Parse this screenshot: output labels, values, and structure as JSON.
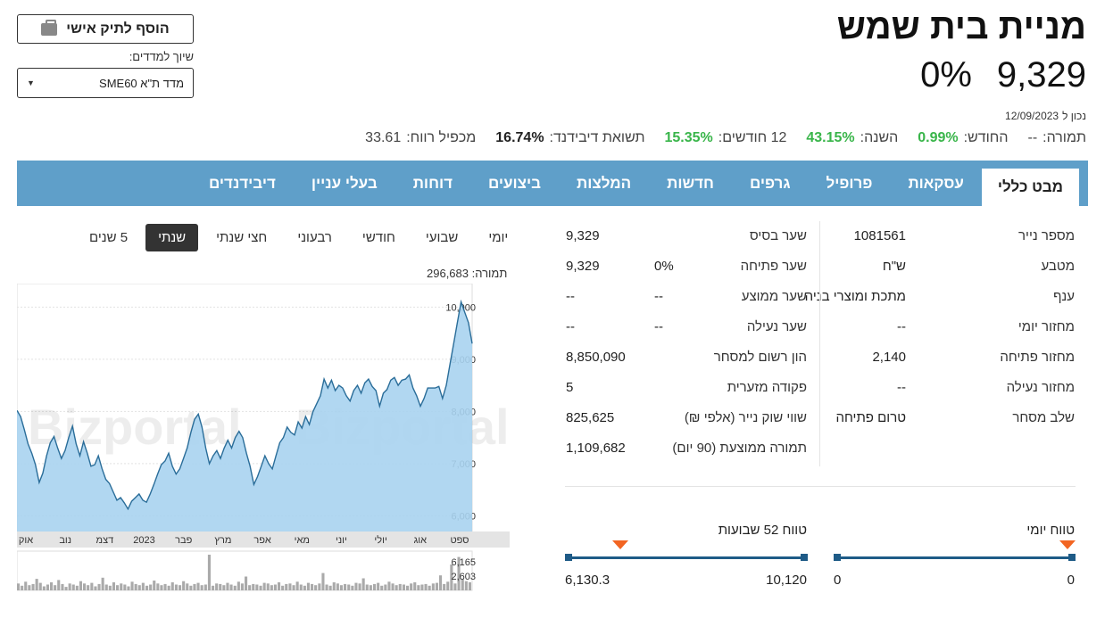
{
  "header": {
    "title": "מניית בית שמש",
    "price": "9,329",
    "change_pct": "0%",
    "as_of_label": "נכון ל",
    "as_of_date": "12/09/2023"
  },
  "stats": [
    {
      "label": "תמורה:",
      "value": "--",
      "style": "plain"
    },
    {
      "label": "החודש:",
      "value": "0.99%",
      "style": "green"
    },
    {
      "label": "השנה:",
      "value": "43.15%",
      "style": "green"
    },
    {
      "label": "12 חודשים:",
      "value": "15.35%",
      "style": "green"
    },
    {
      "label": "תשואת דיבידנד:",
      "value": "16.74%",
      "style": "bold"
    },
    {
      "label": "מכפיל רווח:",
      "value": "33.61",
      "style": "plain"
    }
  ],
  "actions": {
    "portfolio_button": "הוסף לתיק אישי",
    "index_label": "שיוך למדדים:",
    "index_selected": "מדד ת\"א SME60"
  },
  "tabs": [
    {
      "label": "מבט כללי",
      "active": true
    },
    {
      "label": "עסקאות"
    },
    {
      "label": "פרופיל"
    },
    {
      "label": "גרפים"
    },
    {
      "label": "חדשות"
    },
    {
      "label": "המלצות"
    },
    {
      "label": "ביצועים"
    },
    {
      "label": "דוחות"
    },
    {
      "label": "בעלי עניין"
    },
    {
      "label": "דיבידנדים"
    }
  ],
  "details_right": [
    {
      "label": "מספר נייר",
      "value": "1081561"
    },
    {
      "label": "מטבע",
      "value": "ש\"ח"
    },
    {
      "label": "ענף",
      "value": "מתכת ומוצרי בניה"
    },
    {
      "label": "מחזור יומי",
      "value": "--"
    },
    {
      "label": "מחזור פתיחה",
      "value": "2,140"
    },
    {
      "label": "מחזור נעילה",
      "value": "--"
    },
    {
      "label": "שלב מסחר",
      "value": "טרום פתיחה"
    }
  ],
  "details_left": [
    {
      "label": "שער בסיס",
      "mid": "",
      "value": "9,329"
    },
    {
      "label": "שער פתיחה",
      "mid": "0%",
      "value": "9,329"
    },
    {
      "label": "שער ממוצע",
      "mid": "--",
      "value": "--"
    },
    {
      "label": "שער נעילה",
      "mid": "--",
      "value": "--"
    },
    {
      "label": "הון רשום למסחר",
      "mid": "",
      "value": "8,850,090"
    },
    {
      "label": "פקודה מזערית",
      "mid": "",
      "value": "5"
    },
    {
      "label": "שווי שוק נייר (אלפי ₪)",
      "mid": "",
      "value": "825,625"
    },
    {
      "label": "תמורה ממוצעת (90 יום)",
      "mid": "",
      "value": "1,109,682"
    }
  ],
  "ranges": {
    "daily": {
      "title": "טווח יומי",
      "low": "0",
      "high": "0",
      "marker": 0.0
    },
    "week52": {
      "title": "טווח 52 שבועות",
      "low": "6,130.3",
      "high": "10,120",
      "marker": 0.79
    }
  },
  "chart_controls": {
    "periods": [
      "יומי",
      "שבועי",
      "חודשי",
      "רבעוני",
      "חצי שנתי",
      "שנתי",
      "5 שנים"
    ],
    "active_period": "שנתי",
    "turnover_label": "תמורה:",
    "turnover_value": "296,683"
  },
  "chart_data": {
    "type": "area",
    "watermark": "Bizportal",
    "y_ticks": [
      "10,000",
      "9,000",
      "8,000",
      "7,000",
      "6,000"
    ],
    "ylim": [
      5700,
      10450
    ],
    "x_labels": [
      "ספט",
      "אוג",
      "יולי",
      "יוני",
      "מאי",
      "אפר",
      "מרץ",
      "פבר",
      "2023",
      "דצמ",
      "נוב",
      "אוק"
    ],
    "volume_ticks": [
      "6,165",
      "2,603"
    ],
    "series": [
      {
        "values": [
          8020,
          7900,
          7650,
          7380,
          7200,
          6980,
          6640,
          6820,
          7150,
          7400,
          7520,
          7300,
          7100,
          7250,
          7500,
          7720,
          7380,
          7150,
          7420,
          7200,
          6950,
          6980,
          7150,
          6900,
          6700,
          6620,
          6460,
          6300,
          6350,
          6250,
          6130,
          6280,
          6350,
          6420,
          6300,
          6260,
          6420,
          6600,
          6800,
          6980,
          7050,
          7200,
          6950,
          6800,
          6900,
          7100,
          7300,
          7600,
          7850,
          7950,
          7700,
          7300,
          7000,
          7150,
          7250,
          7100,
          7300,
          7450,
          7300,
          7500,
          7620,
          7500,
          7200,
          6950,
          6600,
          6750,
          6950,
          7150,
          7000,
          6900,
          7150,
          7400,
          7500,
          7700,
          7600,
          7550,
          7800,
          7680,
          7900,
          7750,
          8000,
          8150,
          8300,
          8620,
          8450,
          8600,
          8400,
          8500,
          8450,
          8300,
          8200,
          8400,
          8500,
          8350,
          8550,
          8620,
          8480,
          8400,
          8100,
          8350,
          8420,
          8600,
          8650,
          8500,
          8600,
          8620,
          8700,
          8450,
          8300,
          8100,
          8250,
          8450,
          8450,
          8450,
          8480,
          8250,
          8500,
          8900,
          9300,
          9700,
          10100,
          9900,
          9700,
          9300
        ]
      }
    ],
    "volume": [
      1.2,
      0.8,
      1.5,
      0.9,
      1.1,
      2.0,
      1.3,
      0.7,
      1.0,
      1.4,
      0.9,
      1.8,
      1.1,
      0.6,
      1.2,
      1.0,
      0.8,
      1.6,
      1.2,
      0.9,
      1.3,
      0.7,
      1.1,
      2.2,
      1.0,
      0.8,
      1.4,
      0.9,
      1.2,
      1.0,
      0.7,
      1.5,
      1.1,
      0.9,
      1.3,
      0.8,
      1.0,
      1.7,
      1.2,
      0.9,
      1.1,
      0.8,
      1.4,
      1.0,
      0.9,
      1.6,
      1.2,
      0.8,
      1.1,
      1.3,
      0.9,
      1.0,
      6.2,
      0.8,
      1.2,
      1.1,
      0.9,
      1.3,
      1.0,
      0.8,
      1.5,
      1.2,
      2.4,
      0.9,
      1.1,
      1.0,
      0.8,
      1.3,
      1.2,
      0.9,
      1.0,
      1.4,
      0.8,
      1.1,
      1.2,
      0.9,
      1.5,
      1.0,
      0.8,
      1.3,
      1.1,
      0.9,
      1.2,
      3.0,
      1.0,
      0.8,
      1.4,
      1.2,
      0.9,
      1.1,
      1.0,
      0.8,
      1.3,
      1.2,
      2.1,
      1.0,
      0.9,
      1.1,
      1.3,
      0.8,
      1.0,
      1.5,
      1.2,
      0.9,
      1.1,
      1.0,
      0.8,
      1.2,
      1.4,
      0.9,
      1.0,
      1.1,
      0.8,
      1.2,
      1.3,
      2.6,
      1.1,
      1.5,
      4.5,
      1.2,
      5.8,
      2.0,
      1.6,
      1.4
    ]
  }
}
